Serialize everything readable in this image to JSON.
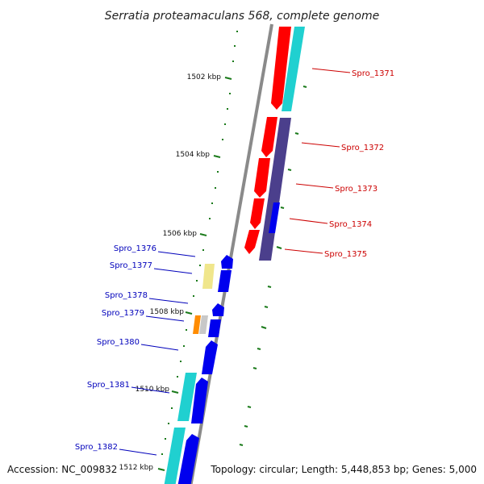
{
  "title": "Serratia proteamaculans 568, complete genome",
  "footer": {
    "accession": "Accession: NC_009832",
    "summary": "Topology: circular; Length: 5,448,853 bp; Genes: 5,000"
  },
  "colors": {
    "backbone": "#8a8a8a",
    "ticks": "#1a7a1a",
    "forward_label": "#cc0000",
    "reverse_label": "#0000bb",
    "red": "#ff0000",
    "cyan": "#20d0d0",
    "purple": "#4b3f8c",
    "blue": "#0000ee",
    "khaki": "#f0e68c",
    "orange": "#ff8c00",
    "grey": "#c8c8c8"
  },
  "ticks": [
    {
      "label": "1502 kbp"
    },
    {
      "label": "1504 kbp"
    },
    {
      "label": "1506 kbp"
    },
    {
      "label": "1508 kbp"
    },
    {
      "label": "1510 kbp"
    },
    {
      "label": "1512 kbp"
    }
  ],
  "forward_labels": [
    {
      "id": "Spro_1371"
    },
    {
      "id": "Spro_1372"
    },
    {
      "id": "Spro_1373"
    },
    {
      "id": "Spro_1374"
    },
    {
      "id": "Spro_1375"
    }
  ],
  "reverse_labels": [
    {
      "id": "Spro_1376"
    },
    {
      "id": "Spro_1377"
    },
    {
      "id": "Spro_1378"
    },
    {
      "id": "Spro_1379"
    },
    {
      "id": "Spro_1380"
    },
    {
      "id": "Spro_1381"
    },
    {
      "id": "Spro_1382"
    }
  ]
}
